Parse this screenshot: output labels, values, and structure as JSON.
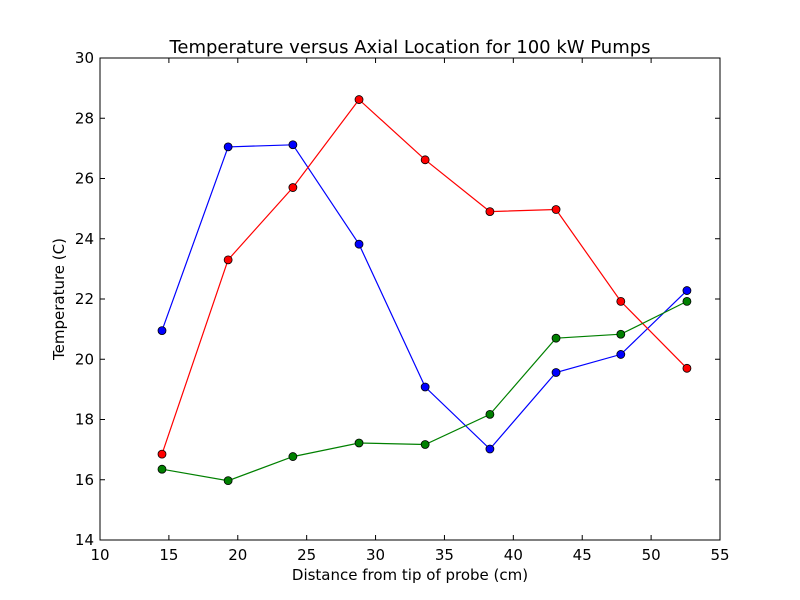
{
  "chart_data": {
    "type": "line",
    "title": "Temperature versus Axial Location for 100 kW Pumps",
    "xlabel": "Distance from tip of probe (cm)",
    "ylabel": "Temperature (C)",
    "xlim": [
      10,
      55
    ],
    "ylim": [
      14,
      30
    ],
    "xticks": [
      10,
      15,
      20,
      25,
      30,
      35,
      40,
      45,
      50,
      55
    ],
    "yticks": [
      14,
      16,
      18,
      20,
      22,
      24,
      26,
      28,
      30
    ],
    "grid": false,
    "legend": "none",
    "x": [
      14.5,
      19.3,
      24.0,
      28.8,
      33.6,
      38.3,
      43.1,
      47.8,
      52.6
    ],
    "series": [
      {
        "color": "#0000ff",
        "values": [
          20.95,
          27.05,
          27.12,
          23.82,
          19.08,
          17.02,
          19.56,
          20.16,
          22.28
        ]
      },
      {
        "color": "#ff0000",
        "values": [
          16.85,
          23.3,
          25.7,
          28.62,
          26.62,
          24.9,
          24.97,
          21.92,
          19.7
        ]
      },
      {
        "color": "#008000",
        "values": [
          16.35,
          15.97,
          16.77,
          17.22,
          17.17,
          18.17,
          20.7,
          20.83,
          21.92
        ]
      }
    ]
  }
}
